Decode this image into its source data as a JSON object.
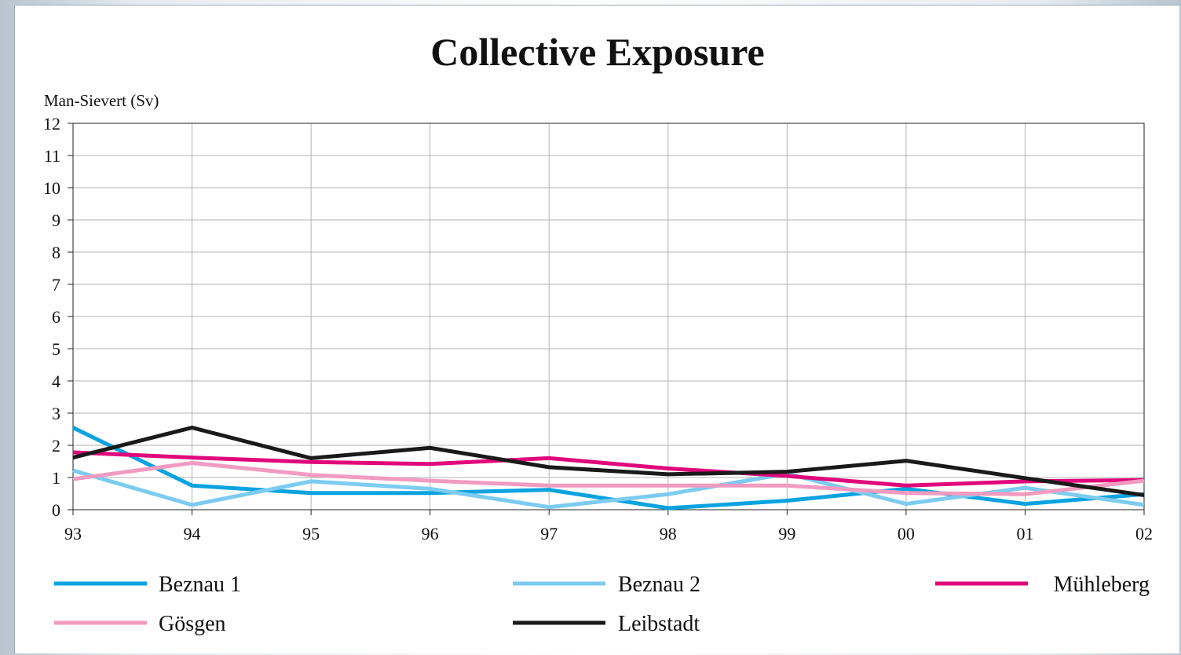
{
  "chart_data": {
    "type": "line",
    "title": "Collective Exposure",
    "ylabel": "Man-Sievert (Sv)",
    "xlabel": "",
    "categories": [
      "93",
      "94",
      "95",
      "96",
      "97",
      "98",
      "99",
      "00",
      "01",
      "02"
    ],
    "ylim": [
      0,
      12
    ],
    "yticks": [
      0,
      1,
      2,
      3,
      4,
      5,
      6,
      7,
      8,
      9,
      10,
      11,
      12
    ],
    "grid": true,
    "legend_position": "bottom",
    "series": [
      {
        "name": "Beznau 1",
        "color": "#0aa3e0",
        "values": [
          2.55,
          0.75,
          0.52,
          0.52,
          0.62,
          0.05,
          0.28,
          0.65,
          0.18,
          0.48
        ]
      },
      {
        "name": "Beznau 2",
        "color": "#7ccbf0",
        "values": [
          1.22,
          0.15,
          0.88,
          0.65,
          0.08,
          0.48,
          1.12,
          0.18,
          0.68,
          0.15
        ]
      },
      {
        "name": "Mühleberg",
        "color": "#e0087a",
        "values": [
          1.78,
          1.62,
          1.48,
          1.42,
          1.6,
          1.28,
          1.05,
          0.75,
          0.88,
          0.92
        ]
      },
      {
        "name": "Gösgen",
        "color": "#f29bc0",
        "values": [
          0.95,
          1.45,
          1.08,
          0.9,
          0.75,
          0.75,
          0.75,
          0.52,
          0.48,
          0.9
        ]
      },
      {
        "name": "Leibstadt",
        "color": "#1a1a1a",
        "values": [
          1.62,
          2.55,
          1.6,
          1.92,
          1.32,
          1.1,
          1.18,
          1.52,
          0.98,
          0.45
        ]
      }
    ]
  }
}
